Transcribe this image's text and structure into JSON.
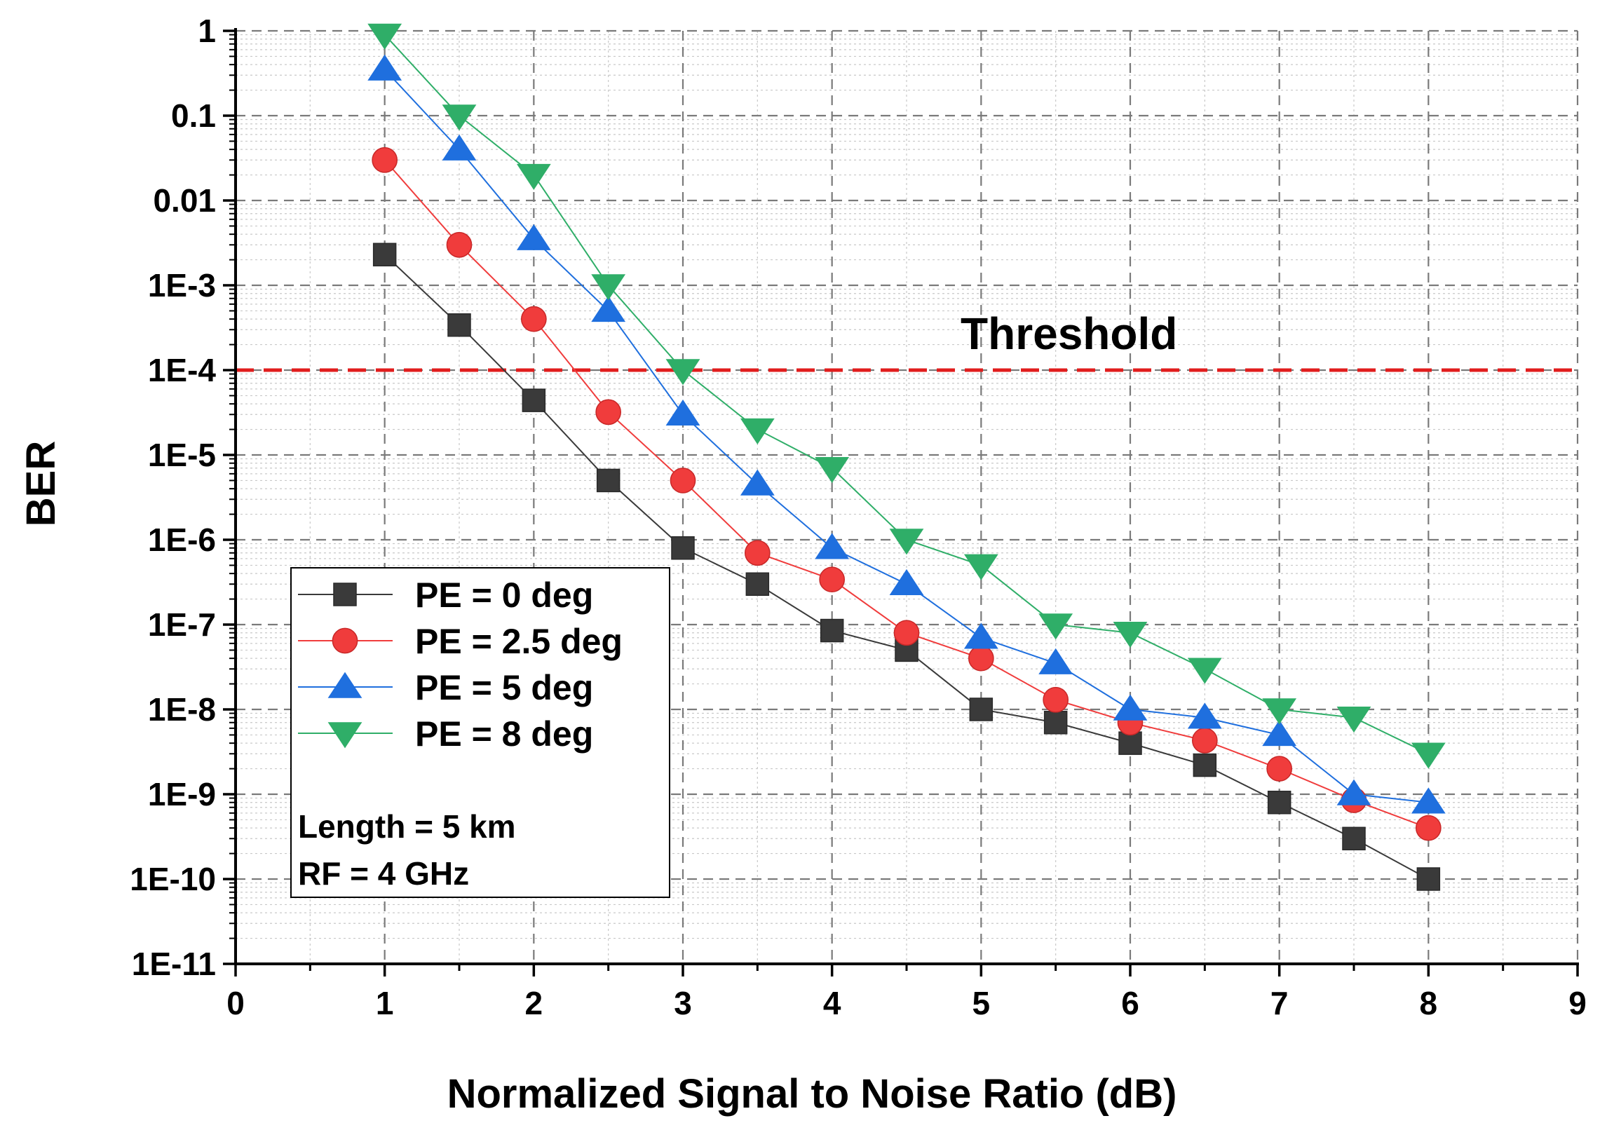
{
  "chart_data": {
    "type": "line",
    "title": "",
    "xlabel": "Normalized Signal to Noise Ratio (dB)",
    "ylabel": "BER",
    "xlim": [
      0,
      9
    ],
    "ylim": [
      1e-11,
      1
    ],
    "yscale": "log",
    "x_ticks": [
      0,
      1,
      2,
      3,
      4,
      5,
      6,
      7,
      8,
      9
    ],
    "x_tick_labels": [
      "0",
      "1",
      "2",
      "3",
      "4",
      "5",
      "6",
      "7",
      "8",
      "9"
    ],
    "y_ticks": [
      1,
      0.1,
      0.01,
      0.001,
      0.0001,
      1e-05,
      1e-06,
      1e-07,
      1e-08,
      1e-09,
      1e-10,
      1e-11
    ],
    "y_tick_labels": [
      "1",
      "0.1",
      "0.01",
      "1E-3",
      "1E-4",
      "1E-5",
      "1E-6",
      "1E-7",
      "1E-8",
      "1E-9",
      "1E-10",
      "1E-11"
    ],
    "grid": true,
    "legend_position": "lower-left",
    "x": [
      1,
      1.5,
      2,
      2.5,
      3,
      3.5,
      4,
      4.5,
      5,
      5.5,
      6,
      6.5,
      7,
      7.5,
      8
    ],
    "series": [
      {
        "name": "PE = 0 deg",
        "color": "#3a3a3a",
        "marker": "square",
        "values": [
          0.0023,
          0.00034,
          4.4e-05,
          5e-06,
          8e-07,
          3e-07,
          8.5e-08,
          5e-08,
          1e-08,
          7e-09,
          4e-09,
          2.2e-09,
          8e-10,
          3e-10,
          1e-10
        ]
      },
      {
        "name": "PE = 2.5 deg",
        "color": "#f03c3c",
        "marker": "circle",
        "values": [
          0.03,
          0.003,
          0.0004,
          3.2e-05,
          5e-06,
          7e-07,
          3.4e-07,
          8e-08,
          4e-08,
          1.3e-08,
          7e-09,
          4.3e-09,
          2e-09,
          8.5e-10,
          4e-10
        ]
      },
      {
        "name": "PE = 5 deg",
        "color": "#1f6fde",
        "marker": "triangle-up",
        "values": [
          0.35,
          0.04,
          0.0035,
          0.0005,
          3e-05,
          4.5e-06,
          8e-07,
          3e-07,
          7e-08,
          3.5e-08,
          1e-08,
          8e-09,
          5e-09,
          1e-09,
          8e-10
        ]
      },
      {
        "name": "PE = 8 deg",
        "color": "#2fae68",
        "marker": "triangle-down",
        "values": [
          0.9,
          0.1,
          0.02,
          0.001,
          0.0001,
          2e-05,
          7e-06,
          1e-06,
          5e-07,
          1e-07,
          8e-08,
          3e-08,
          1e-08,
          8e-09,
          3e-09
        ]
      }
    ],
    "threshold": {
      "label": "Threshold",
      "value": 0.0001,
      "color": "#e11d1d"
    },
    "annotations": [
      "Length = 5 km",
      "RF = 4 GHz"
    ]
  }
}
